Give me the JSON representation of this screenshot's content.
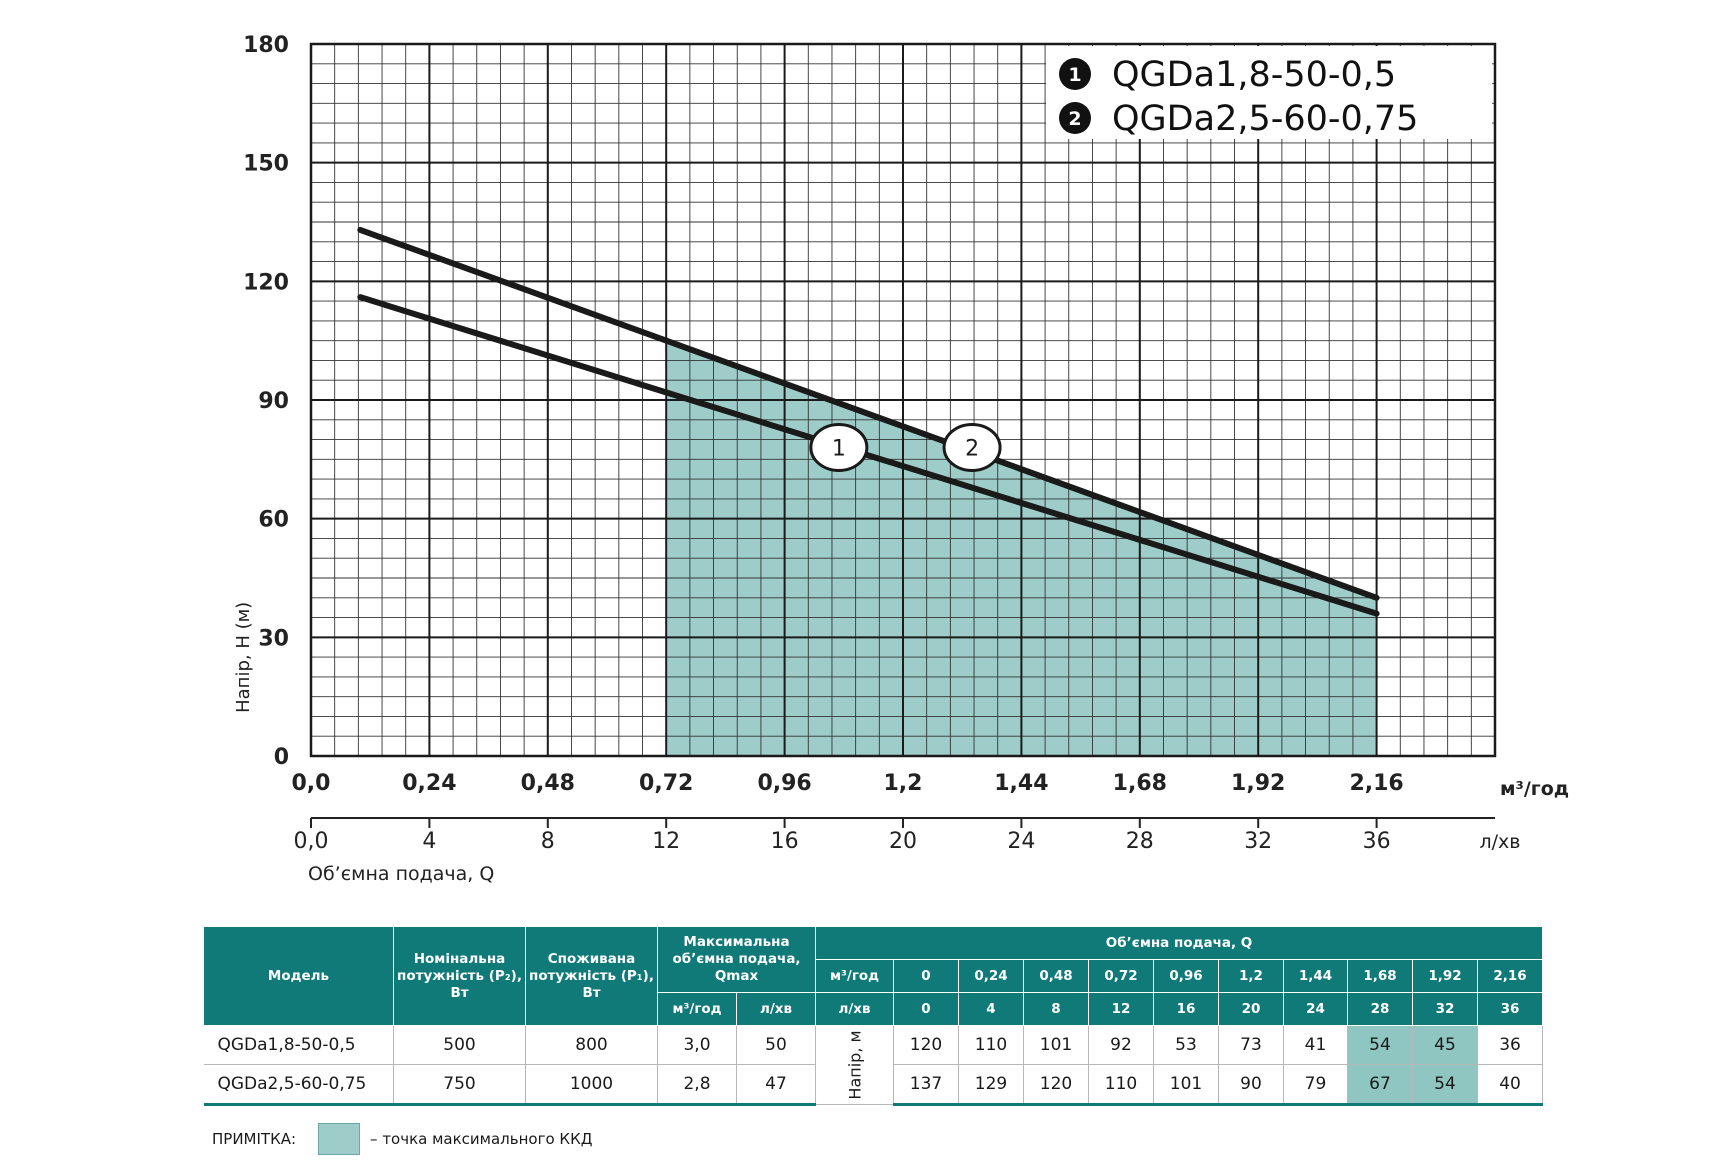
{
  "chart_data": {
    "type": "line",
    "ylabel": "Напір, H (м)",
    "xlabel": "Об’ємна подача, Q",
    "x_unit_primary": "м³/год",
    "x_unit_secondary": "л/хв",
    "ylim": [
      0,
      180
    ],
    "xlim": [
      0,
      2.4
    ],
    "y_ticks": [
      "0",
      "30",
      "60",
      "90",
      "120",
      "150",
      "180"
    ],
    "x_ticks_primary": [
      "0,0",
      "0,24",
      "0,48",
      "0,72",
      "0,96",
      "1,2",
      "1,44",
      "1,68",
      "1,92",
      "2,16"
    ],
    "x_ticks_secondary": [
      "0,0",
      "4",
      "8",
      "12",
      "16",
      "20",
      "24",
      "28",
      "32",
      "36"
    ],
    "grid": true,
    "legend": {
      "position": "top-right",
      "entries": [
        {
          "marker": "1",
          "label": "QGDa1,8-50-0,5"
        },
        {
          "marker": "2",
          "label": "QGDa2,5-60-0,75"
        }
      ]
    },
    "shaded_region": {
      "x_start": 0.72,
      "x_end": 2.16,
      "color": "#9ecdc9"
    },
    "series": [
      {
        "name": "1",
        "x": [
          0.1,
          2.16
        ],
        "y": [
          116,
          36
        ]
      },
      {
        "name": "2",
        "x": [
          0.1,
          2.16
        ],
        "y": [
          133,
          40
        ]
      }
    ],
    "curve_labels": [
      {
        "text": "1",
        "x": 1.07,
        "y": 78
      },
      {
        "text": "2",
        "x": 1.34,
        "y": 78
      }
    ]
  },
  "table": {
    "header": {
      "model": "Модель",
      "nominal_power": "Номінальна потужність (P₂), Вт",
      "consumed_power": "Споживана потужність (P₁), Вт",
      "max_flow": "Максимальна об’ємна подача, Qmax",
      "max_flow_unit1": "м³/год",
      "max_flow_unit2": "л/хв",
      "flow": "Об’ємна подача, Q",
      "flow_unit1": "м³/год",
      "flow_unit2": "л/хв",
      "head": "Напір, м"
    },
    "flow_m3": [
      "0",
      "0,24",
      "0,48",
      "0,72",
      "0,96",
      "1,2",
      "1,44",
      "1,68",
      "1,92",
      "2,16"
    ],
    "flow_lmin": [
      "0",
      "4",
      "8",
      "12",
      "16",
      "20",
      "24",
      "28",
      "32",
      "36"
    ],
    "rows": [
      {
        "model": "QGDa1,8-50-0,5",
        "p2": "500",
        "p1": "800",
        "qmax_m3": "3,0",
        "qmax_lmin": "50",
        "heads": [
          "120",
          "110",
          "101",
          "92",
          "53",
          "73",
          "41",
          "54",
          "45",
          "36"
        ]
      },
      {
        "model": "QGDa2,5-60-0,75",
        "p2": "750",
        "p1": "1000",
        "qmax_m3": "2,8",
        "qmax_lmin": "47",
        "heads": [
          "137",
          "129",
          "120",
          "110",
          "101",
          "90",
          "79",
          "67",
          "54",
          "40"
        ]
      }
    ],
    "highlight_color": "#8fc6c2"
  },
  "note": {
    "label": "ПРИМІТКА:",
    "text": "– точка максимального ККД"
  }
}
